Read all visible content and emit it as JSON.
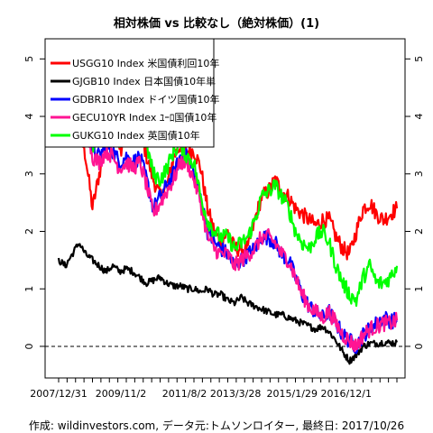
{
  "chart_data": {
    "type": "line",
    "title": "相対株価 vs 比較なし（絶対株価）(1)",
    "caption": "作成: wildinvestors.com, データ元:トムソンロイター, 最終日: 2017/10/26",
    "x_tick_labels": [
      "2007/12/31",
      "2009/11/2",
      "2011/8/2",
      "2013/3/28",
      "2015/1/29",
      "2016/12/1"
    ],
    "x_tick_positions": [
      0.0,
      0.184,
      0.372,
      0.523,
      0.69,
      0.85
    ],
    "ylim": [
      -0.55,
      5.35
    ],
    "y_ticks": [
      0,
      1,
      2,
      3,
      4,
      5
    ],
    "zero_line": true,
    "legend_position": "top-left",
    "series": [
      {
        "name": "USGG10 Index 米国債利回10年",
        "color": "#ff0000",
        "x": [
          0.0,
          0.02,
          0.04,
          0.06,
          0.08,
          0.1,
          0.12,
          0.14,
          0.16,
          0.18,
          0.2,
          0.22,
          0.24,
          0.26,
          0.28,
          0.3,
          0.32,
          0.34,
          0.36,
          0.38,
          0.4,
          0.42,
          0.44,
          0.46,
          0.48,
          0.5,
          0.52,
          0.54,
          0.56,
          0.58,
          0.6,
          0.62,
          0.64,
          0.66,
          0.68,
          0.7,
          0.72,
          0.74,
          0.76,
          0.78,
          0.8,
          0.82,
          0.84,
          0.86,
          0.88,
          0.9,
          0.92,
          0.94,
          0.96,
          0.98,
          1.0
        ],
        "values": [
          3.9,
          3.6,
          4.0,
          3.8,
          3.3,
          2.4,
          3.0,
          3.5,
          3.7,
          3.4,
          3.6,
          3.9,
          3.8,
          3.3,
          2.9,
          2.6,
          2.8,
          3.3,
          3.5,
          3.4,
          3.4,
          3.1,
          2.4,
          2.0,
          1.8,
          2.0,
          1.7,
          1.7,
          1.7,
          2.2,
          2.6,
          2.7,
          2.9,
          2.7,
          2.6,
          2.4,
          2.3,
          2.2,
          2.1,
          2.2,
          2.2,
          1.9,
          1.7,
          1.6,
          2.0,
          2.4,
          2.5,
          2.3,
          2.2,
          2.3,
          2.4
        ]
      },
      {
        "name": "GJGB10 Index 日本国債10年単",
        "color": "#000000",
        "x": [
          0.0,
          0.02,
          0.04,
          0.06,
          0.08,
          0.1,
          0.12,
          0.14,
          0.16,
          0.18,
          0.2,
          0.22,
          0.24,
          0.26,
          0.28,
          0.3,
          0.32,
          0.34,
          0.36,
          0.38,
          0.4,
          0.42,
          0.44,
          0.46,
          0.48,
          0.5,
          0.52,
          0.54,
          0.56,
          0.58,
          0.6,
          0.62,
          0.64,
          0.66,
          0.68,
          0.7,
          0.72,
          0.74,
          0.76,
          0.78,
          0.8,
          0.82,
          0.84,
          0.86,
          0.88,
          0.9,
          0.92,
          0.94,
          0.96,
          0.98,
          1.0
        ],
        "values": [
          1.5,
          1.4,
          1.6,
          1.8,
          1.6,
          1.5,
          1.4,
          1.3,
          1.4,
          1.3,
          1.35,
          1.3,
          1.2,
          1.1,
          1.15,
          1.2,
          1.1,
          1.05,
          1.05,
          1.0,
          1.0,
          0.95,
          1.0,
          0.9,
          0.9,
          0.8,
          0.75,
          0.85,
          0.75,
          0.7,
          0.65,
          0.6,
          0.55,
          0.55,
          0.5,
          0.45,
          0.4,
          0.35,
          0.3,
          0.35,
          0.25,
          0.1,
          -0.1,
          -0.25,
          -0.15,
          0.0,
          0.05,
          0.05,
          0.07,
          0.06,
          0.07
        ]
      },
      {
        "name": "GDBR10 Index ドイツ国債10年",
        "color": "#0000ff",
        "x": [
          0.0,
          0.02,
          0.04,
          0.06,
          0.08,
          0.1,
          0.12,
          0.14,
          0.16,
          0.18,
          0.2,
          0.22,
          0.24,
          0.26,
          0.28,
          0.3,
          0.32,
          0.34,
          0.36,
          0.38,
          0.4,
          0.42,
          0.44,
          0.46,
          0.48,
          0.5,
          0.52,
          0.54,
          0.56,
          0.58,
          0.6,
          0.62,
          0.64,
          0.66,
          0.68,
          0.7,
          0.72,
          0.74,
          0.76,
          0.78,
          0.8,
          0.82,
          0.84,
          0.86,
          0.88,
          0.9,
          0.92,
          0.94,
          0.96,
          0.98,
          1.0
        ],
        "values": [
          4.3,
          4.1,
          4.4,
          4.5,
          4.0,
          3.4,
          3.3,
          3.5,
          3.4,
          3.2,
          3.3,
          3.2,
          3.3,
          2.9,
          2.4,
          2.6,
          2.8,
          3.0,
          3.3,
          3.3,
          3.0,
          2.6,
          2.0,
          1.8,
          1.7,
          1.6,
          1.4,
          1.5,
          1.6,
          1.7,
          1.9,
          1.9,
          1.8,
          1.6,
          1.5,
          1.2,
          0.9,
          0.7,
          0.6,
          0.5,
          0.6,
          0.4,
          0.2,
          0.1,
          0.0,
          0.2,
          0.3,
          0.4,
          0.5,
          0.45,
          0.45
        ]
      },
      {
        "name": "GECU10YR Index ﾕｰﾛ国債10年",
        "color": "#ff1493",
        "x": [
          0.0,
          0.02,
          0.04,
          0.06,
          0.08,
          0.1,
          0.12,
          0.14,
          0.16,
          0.18,
          0.2,
          0.22,
          0.24,
          0.26,
          0.28,
          0.3,
          0.32,
          0.34,
          0.36,
          0.38,
          0.4,
          0.42,
          0.44,
          0.46,
          0.48,
          0.5,
          0.52,
          0.54,
          0.56,
          0.58,
          0.6,
          0.62,
          0.64,
          0.66,
          0.68,
          0.7,
          0.72,
          0.74,
          0.76,
          0.78,
          0.8,
          0.82,
          0.84,
          0.86,
          0.88,
          0.9,
          0.92,
          0.94,
          0.96,
          0.98,
          1.0
        ],
        "values": [
          4.3,
          4.1,
          4.4,
          4.5,
          3.9,
          3.3,
          3.2,
          3.4,
          3.3,
          3.1,
          3.2,
          3.1,
          3.2,
          2.8,
          2.3,
          2.5,
          2.7,
          2.9,
          3.2,
          3.2,
          2.9,
          2.5,
          1.9,
          1.7,
          1.6,
          1.6,
          1.4,
          1.5,
          1.6,
          1.7,
          1.9,
          1.9,
          1.8,
          1.6,
          1.5,
          1.2,
          0.9,
          0.7,
          0.6,
          0.5,
          0.6,
          0.4,
          0.2,
          0.1,
          0.0,
          0.2,
          0.3,
          0.35,
          0.4,
          0.4,
          0.45
        ]
      },
      {
        "name": "GUKG10 Index 英国債10年",
        "color": "#00ff00",
        "x": [
          0.0,
          0.02,
          0.04,
          0.06,
          0.08,
          0.1,
          0.12,
          0.14,
          0.16,
          0.18,
          0.2,
          0.22,
          0.24,
          0.26,
          0.28,
          0.3,
          0.32,
          0.34,
          0.36,
          0.38,
          0.4,
          0.42,
          0.44,
          0.46,
          0.48,
          0.5,
          0.52,
          0.54,
          0.56,
          0.58,
          0.6,
          0.62,
          0.64,
          0.66,
          0.68,
          0.7,
          0.72,
          0.74,
          0.76,
          0.78,
          0.8,
          0.82,
          0.84,
          0.86,
          0.88,
          0.9,
          0.92,
          0.94,
          0.96,
          0.98,
          1.0
        ],
        "values": [
          4.6,
          4.4,
          4.9,
          5.1,
          4.2,
          3.5,
          3.6,
          3.9,
          4.0,
          3.6,
          3.8,
          3.9,
          3.7,
          3.5,
          3.0,
          2.9,
          3.1,
          3.4,
          3.5,
          3.3,
          3.2,
          2.6,
          2.2,
          2.0,
          1.9,
          1.9,
          1.7,
          1.8,
          1.9,
          2.2,
          2.6,
          2.7,
          2.8,
          2.6,
          2.4,
          2.0,
          1.8,
          1.7,
          1.9,
          2.0,
          1.8,
          1.4,
          1.1,
          0.9,
          0.8,
          1.2,
          1.4,
          1.1,
          1.1,
          1.2,
          1.4
        ]
      }
    ]
  }
}
